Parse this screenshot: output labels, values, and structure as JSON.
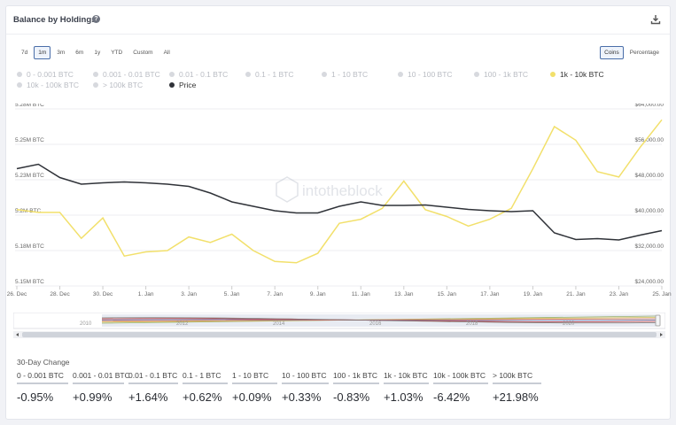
{
  "header": {
    "title": "Balance by Holdings",
    "help_icon": "?",
    "download_icon": "download-icon"
  },
  "range_buttons": [
    {
      "label": "7d",
      "active": false
    },
    {
      "label": "1m",
      "active": true
    },
    {
      "label": "3m",
      "active": false
    },
    {
      "label": "6m",
      "active": false
    },
    {
      "label": "1y",
      "active": false
    },
    {
      "label": "YTD",
      "active": false
    },
    {
      "label": "Custom",
      "active": false
    },
    {
      "label": "All",
      "active": false
    }
  ],
  "unit_buttons": [
    {
      "label": "Coins",
      "active": true
    },
    {
      "label": "Percentage",
      "active": false
    }
  ],
  "legend": {
    "row1": [
      {
        "label": "0 - 0.001 BTC",
        "on": false,
        "color": "#d7d9de"
      },
      {
        "label": "0.001 - 0.01 BTC",
        "on": false,
        "color": "#d7d9de"
      },
      {
        "label": "0.01 - 0.1 BTC",
        "on": false,
        "color": "#d7d9de"
      },
      {
        "label": "0.1 - 1 BTC",
        "on": false,
        "color": "#d7d9de"
      },
      {
        "label": "1 - 10 BTC",
        "on": false,
        "color": "#d7d9de"
      },
      {
        "label": "10 - 100 BTC",
        "on": false,
        "color": "#d7d9de"
      },
      {
        "label": "100 - 1k BTC",
        "on": false,
        "color": "#d7d9de"
      },
      {
        "label": "1k - 10k BTC",
        "on": true,
        "color": "#f2e06b"
      }
    ],
    "row2": [
      {
        "label": "10k - 100k BTC",
        "on": false,
        "color": "#d7d9de"
      },
      {
        "label": "> 100k BTC",
        "on": false,
        "color": "#d7d9de"
      },
      {
        "label": "Price",
        "on": true,
        "color": "#2f3238"
      }
    ]
  },
  "chart_data": {
    "type": "line",
    "x_ticks": [
      "26. Dec",
      "28. Dec",
      "30. Dec",
      "1. Jan",
      "3. Jan",
      "5. Jan",
      "7. Jan",
      "9. Jan",
      "11. Jan",
      "13. Jan",
      "15. Jan",
      "17. Jan",
      "19. Jan",
      "21. Jan",
      "23. Jan",
      "25. Jan"
    ],
    "y_left_ticks": [
      "5.15M BTC",
      "5.18M BTC",
      "5.2M BTC",
      "5.23M BTC",
      "5.25M BTC",
      "5.28M BTC"
    ],
    "y_right_ticks": [
      "$24,000.00",
      "$32,000.00",
      "$40,000.00",
      "$48,000.00",
      "$56,000.00",
      "$64,000.00"
    ],
    "y_left_range": [
      5.15,
      5.28
    ],
    "y_right_range": [
      24000,
      64000
    ],
    "x_range": [
      26,
      56
    ],
    "watermark": "intotheblock",
    "series": [
      {
        "name": "1k - 10k BTC",
        "axis": "left",
        "color": "#f2e06b",
        "x": [
          26,
          27,
          28,
          29,
          30,
          31,
          32,
          33,
          34,
          35,
          36,
          37,
          38,
          39,
          40,
          41,
          42,
          43,
          44,
          45,
          46,
          47,
          48,
          49,
          50,
          51,
          52,
          53,
          54,
          55,
          56
        ],
        "y": [
          5.206,
          5.204,
          5.204,
          5.185,
          5.2,
          5.172,
          5.175,
          5.176,
          5.186,
          5.182,
          5.188,
          5.176,
          5.168,
          5.167,
          5.174,
          5.196,
          5.199,
          5.207,
          5.227,
          5.206,
          5.201,
          5.194,
          5.199,
          5.207,
          5.236,
          5.267,
          5.257,
          5.234,
          5.23,
          5.252,
          5.272
        ]
      },
      {
        "name": "Price",
        "axis": "right",
        "color": "#2f3238",
        "x": [
          26,
          27,
          28,
          29,
          30,
          31,
          32,
          33,
          34,
          35,
          36,
          37,
          38,
          39,
          40,
          41,
          42,
          43,
          44,
          45,
          46,
          47,
          48,
          49,
          50,
          51,
          52,
          53,
          54,
          55,
          56
        ],
        "y": [
          50500,
          51500,
          48500,
          47000,
          47300,
          47500,
          47300,
          47000,
          46500,
          45000,
          43000,
          42000,
          41000,
          40500,
          40500,
          42000,
          43000,
          42200,
          42200,
          42300,
          41800,
          41300,
          41000,
          40800,
          41000,
          36000,
          34500,
          34700,
          34400,
          35500,
          36500
        ]
      }
    ],
    "navigator": {
      "year_labels": [
        "2010",
        "2012",
        "2014",
        "2016",
        "2018",
        "2020"
      ]
    }
  },
  "changes": {
    "title": "30-Day Change",
    "items": [
      {
        "label": "0 - 0.001 BTC",
        "value": "-0.95%"
      },
      {
        "label": "0.001 - 0.01 BTC",
        "value": "+0.99%"
      },
      {
        "label": "0.01 - 0.1 BTC",
        "value": "+1.64%"
      },
      {
        "label": "0.1 - 1 BTC",
        "value": "+0.62%"
      },
      {
        "label": "1 - 10 BTC",
        "value": "+0.09%"
      },
      {
        "label": "10 - 100 BTC",
        "value": "+0.33%"
      },
      {
        "label": "100 - 1k BTC",
        "value": "-0.83%"
      },
      {
        "label": "1k - 10k BTC",
        "value": "+1.03%"
      },
      {
        "label": "10k - 100k BTC",
        "value": "-6.42%"
      },
      {
        "label": "> 100k BTC",
        "value": "+21.98%"
      }
    ]
  }
}
